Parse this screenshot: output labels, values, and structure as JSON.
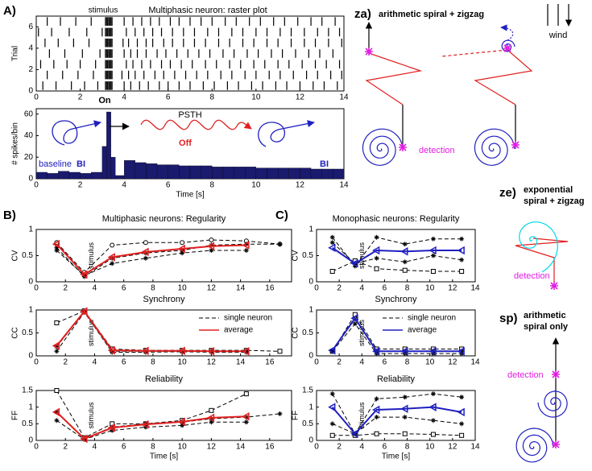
{
  "panel_labels": {
    "a": "A)",
    "b": "B)",
    "c": "C)"
  },
  "diagrams": {
    "za": {
      "label": "za)",
      "title": "arithmetic spiral + zigzag",
      "wind": "wind",
      "detection": "detection"
    },
    "ze": {
      "label": "ze)",
      "title_lines": [
        "exponential",
        "spiral + zigzag"
      ],
      "detection": "detection"
    },
    "sp": {
      "label": "sp)",
      "title_lines": [
        "arithmetic",
        "spiral only"
      ],
      "detection": "detection"
    }
  },
  "chart_data": [
    {
      "type": "raster",
      "title": "Multiphasic neuron: raster plot",
      "annotation": "stimulus",
      "ylabel": "Trial",
      "xlim": [
        0,
        14
      ],
      "xticks": [
        0,
        2,
        4,
        6,
        8,
        10,
        12,
        14
      ],
      "ylim": [
        0,
        7
      ],
      "yticks": [
        0,
        2,
        4,
        6
      ],
      "color": "#000000",
      "trials": [
        [
          0.3,
          0.9,
          1.6,
          2.2,
          2.8,
          3.15,
          3.2,
          3.25,
          3.3,
          3.35,
          3.4,
          3.45,
          4.0,
          4.3,
          4.7,
          5.1,
          5.6,
          6.0,
          6.5,
          7.0,
          7.6,
          8.1,
          8.7,
          9.2,
          9.8,
          10.3,
          10.9,
          11.4,
          12.0,
          12.6,
          13.1,
          13.7
        ],
        [
          0.5,
          1.2,
          1.9,
          2.6,
          3.15,
          3.2,
          3.25,
          3.3,
          3.35,
          3.4,
          3.45,
          3.9,
          4.2,
          4.5,
          4.9,
          5.4,
          5.8,
          6.3,
          6.8,
          7.3,
          7.8,
          8.4,
          8.9,
          9.5,
          10.0,
          10.6,
          11.1,
          11.7,
          12.3,
          12.8,
          13.4,
          13.9
        ],
        [
          0.2,
          0.8,
          1.4,
          2.0,
          2.7,
          3.15,
          3.2,
          3.25,
          3.3,
          3.35,
          3.4,
          3.45,
          4.1,
          4.4,
          4.8,
          5.2,
          5.7,
          6.1,
          6.6,
          7.1,
          7.7,
          8.2,
          8.8,
          9.3,
          9.9,
          10.4,
          11.0,
          11.5,
          12.1,
          12.7,
          13.2,
          13.8
        ],
        [
          0.6,
          1.3,
          2.1,
          2.9,
          3.15,
          3.2,
          3.25,
          3.3,
          3.35,
          3.4,
          3.45,
          4.0,
          4.3,
          4.6,
          5.0,
          5.5,
          5.9,
          6.4,
          6.9,
          7.4,
          7.9,
          8.5,
          9.0,
          9.6,
          10.1,
          10.7,
          11.2,
          11.8,
          12.4,
          12.9,
          13.5
        ],
        [
          0.4,
          1.0,
          1.7,
          2.4,
          3.15,
          3.2,
          3.25,
          3.3,
          3.35,
          3.4,
          3.45,
          3.95,
          4.2,
          4.6,
          5.0,
          5.3,
          5.8,
          6.2,
          6.7,
          7.2,
          7.7,
          8.3,
          8.8,
          9.4,
          9.9,
          10.5,
          11.0,
          11.6,
          12.2,
          12.7,
          13.3,
          13.9
        ],
        [
          0.1,
          0.7,
          1.5,
          2.3,
          3.0,
          3.15,
          3.2,
          3.25,
          3.3,
          3.35,
          3.4,
          3.45,
          4.1,
          4.5,
          4.9,
          5.3,
          5.7,
          6.2,
          6.7,
          7.2,
          7.8,
          8.3,
          8.9,
          9.4,
          10.0,
          10.5,
          11.1,
          11.6,
          12.2,
          12.8,
          13.3,
          13.8
        ],
        [
          0.5,
          1.1,
          1.8,
          2.5,
          3.15,
          3.2,
          3.25,
          3.3,
          3.35,
          3.4,
          3.45,
          4.0,
          4.4,
          4.8,
          5.2,
          5.6,
          6.1,
          6.5,
          7.0,
          7.5,
          8.0,
          8.6,
          9.1,
          9.7,
          10.2,
          10.8,
          11.3,
          11.9,
          12.5,
          13.0,
          13.6
        ]
      ]
    },
    {
      "type": "histogram",
      "title": "PSTH",
      "xlabel": "Time [s]",
      "ylabel": "# spikes/bin",
      "xlim": [
        0,
        14
      ],
      "xticks": [
        0,
        2,
        4,
        6,
        8,
        10,
        12,
        14
      ],
      "ylim": [
        0,
        65
      ],
      "yticks": [
        0,
        20,
        40,
        60
      ],
      "color": "#1a1a6e",
      "annotations": [
        "On",
        "Off",
        "baseline",
        "BI",
        "BI"
      ],
      "bins": [
        0,
        0.5,
        1,
        1.5,
        2,
        2.5,
        3,
        3.2,
        3.4,
        3.6,
        4,
        4.5,
        5,
        5.5,
        6,
        6.5,
        7,
        7.5,
        8,
        8.5,
        9,
        9.5,
        10,
        10.5,
        11,
        11.5,
        12,
        12.5,
        13,
        13.5,
        14
      ],
      "values": [
        6,
        5,
        7,
        6,
        5,
        6,
        30,
        62,
        20,
        3,
        17,
        15,
        14,
        13,
        13,
        12,
        12,
        12,
        11,
        11,
        11,
        11,
        10,
        10,
        10,
        10,
        10,
        9,
        9,
        9
      ]
    },
    {
      "type": "line",
      "title": "Multiphasic neurons: Regularity",
      "ylabel": "CV",
      "annotation": "stimulus",
      "xlim": [
        0,
        17.5
      ],
      "xticks": [
        0,
        2,
        4,
        6,
        8,
        10,
        12,
        14,
        16
      ],
      "ylim": [
        0,
        1
      ],
      "yticks": [
        0,
        0.5,
        1
      ],
      "x": [
        1.4,
        3.3,
        5.2,
        7.5,
        10,
        12,
        14.4,
        16.7
      ],
      "series": [
        {
          "color": "#000000",
          "dash": true,
          "marker": "circle",
          "values": [
            0.75,
            0.18,
            0.7,
            0.75,
            0.75,
            0.8,
            0.78,
            0.72
          ]
        },
        {
          "color": "#000000",
          "dash": true,
          "marker": "star",
          "values": [
            0.65,
            0.1,
            0.45,
            0.55,
            0.6,
            0.7,
            0.72,
            0.72
          ]
        },
        {
          "color": "#000000",
          "dash": true,
          "marker": "star",
          "values": [
            0.6,
            0.12,
            0.35,
            0.45,
            0.55,
            0.6,
            0.6,
            null
          ]
        },
        {
          "color": "#e02020",
          "dash": false,
          "marker": "triangle",
          "values": [
            0.72,
            0.14,
            0.47,
            0.57,
            0.63,
            0.68,
            0.7,
            null
          ]
        }
      ]
    },
    {
      "type": "line",
      "title": "Synchrony",
      "ylabel": "CC",
      "annotation": "stimulus",
      "xlim": [
        0,
        17.5
      ],
      "xticks": [
        0,
        2,
        4,
        6,
        8,
        10,
        12,
        14,
        16
      ],
      "ylim": [
        0,
        1
      ],
      "yticks": [
        0,
        0.5,
        1
      ],
      "x": [
        1.4,
        3.3,
        5.2,
        7.5,
        10,
        12,
        14.4,
        16.7
      ],
      "series": [
        {
          "name": "single neuron",
          "color": "#000000",
          "dash": true,
          "marker": "square",
          "values": [
            0.72,
            0.98,
            0.15,
            0.12,
            0.12,
            0.12,
            0.12,
            0.1
          ]
        },
        {
          "name": "single neuron",
          "color": "#000000",
          "dash": true,
          "marker": "star",
          "values": [
            0.2,
            0.96,
            0.1,
            0.1,
            0.1,
            0.1,
            0.1,
            null
          ]
        },
        {
          "name": "single neuron",
          "color": "#000000",
          "dash": true,
          "marker": "star",
          "values": [
            0.1,
            0.95,
            0.08,
            0.08,
            0.09,
            0.08,
            0.08,
            null
          ]
        },
        {
          "name": "average",
          "color": "#e02020",
          "dash": false,
          "marker": "triangle",
          "values": [
            0.22,
            0.97,
            0.12,
            0.11,
            0.11,
            0.1,
            0.1,
            null
          ]
        }
      ]
    },
    {
      "type": "line",
      "title": "Reliability",
      "xlabel": "Time [s]",
      "ylabel": "FF",
      "annotation": "stimulus",
      "xlim": [
        0,
        17.5
      ],
      "xticks": [
        0,
        2,
        4,
        6,
        8,
        10,
        12,
        14,
        16
      ],
      "ylim": [
        0,
        1.5
      ],
      "yticks": [
        0,
        0.5,
        1,
        1.5
      ],
      "x": [
        1.4,
        3.3,
        5.2,
        7.5,
        10,
        12,
        14.4,
        16.7
      ],
      "series": [
        {
          "color": "#000000",
          "dash": true,
          "marker": "square",
          "values": [
            1.5,
            0.08,
            0.5,
            0.5,
            0.6,
            0.9,
            1.4,
            null
          ]
        },
        {
          "color": "#000000",
          "dash": true,
          "marker": "star",
          "values": [
            0.85,
            0.05,
            0.4,
            0.5,
            0.55,
            0.65,
            0.7,
            0.8
          ]
        },
        {
          "color": "#000000",
          "dash": true,
          "marker": "star",
          "values": [
            0.6,
            0.03,
            0.3,
            0.4,
            0.45,
            0.55,
            0.55,
            null
          ]
        },
        {
          "color": "#e02020",
          "dash": false,
          "marker": "triangle",
          "values": [
            0.85,
            0.05,
            0.38,
            0.48,
            0.56,
            0.68,
            0.72,
            null
          ]
        }
      ]
    },
    {
      "type": "line",
      "title": "Monophasic neurons: Regularity",
      "ylabel": "CV",
      "annotation": "stimulus",
      "xlim": [
        0,
        14
      ],
      "xticks": [
        0,
        2,
        4,
        6,
        8,
        10,
        12,
        14
      ],
      "ylim": [
        0,
        1
      ],
      "yticks": [
        0,
        0.5,
        1
      ],
      "x": [
        1.4,
        3.4,
        5.3,
        7.8,
        10.3,
        12.8
      ],
      "series": [
        {
          "color": "#000000",
          "dash": true,
          "marker": "square",
          "values": [
            0.2,
            0.4,
            0.25,
            0.22,
            0.2,
            0.2
          ]
        },
        {
          "color": "#000000",
          "dash": true,
          "marker": "star",
          "values": [
            0.85,
            0.3,
            0.85,
            0.72,
            0.82,
            0.82
          ]
        },
        {
          "color": "#000000",
          "dash": true,
          "marker": "star",
          "values": [
            0.75,
            0.35,
            0.45,
            0.38,
            0.5,
            0.42
          ]
        },
        {
          "color": "#2020c0",
          "dash": false,
          "marker": "triangle",
          "values": [
            0.65,
            0.35,
            0.6,
            0.58,
            0.6,
            0.6
          ]
        }
      ]
    },
    {
      "type": "line",
      "title": "Synchrony",
      "ylabel": "CC",
      "annotation": "stimulus",
      "xlim": [
        0,
        14
      ],
      "xticks": [
        0,
        2,
        4,
        6,
        8,
        10,
        12,
        14
      ],
      "ylim": [
        0,
        1
      ],
      "yticks": [
        0,
        0.5,
        1
      ],
      "x": [
        1.4,
        3.4,
        5.3,
        7.8,
        10.3,
        12.8
      ],
      "series": [
        {
          "name": "single neuron",
          "color": "#000000",
          "dash": true,
          "marker": "square",
          "values": [
            0.1,
            0.9,
            0.15,
            0.15,
            0.15,
            0.15
          ]
        },
        {
          "name": "single neuron",
          "color": "#000000",
          "dash": true,
          "marker": "star",
          "values": [
            0.12,
            0.8,
            0.1,
            0.1,
            0.1,
            0.1
          ]
        },
        {
          "name": "single neuron",
          "color": "#000000",
          "dash": true,
          "marker": "star",
          "values": [
            0.1,
            0.7,
            0.05,
            0.05,
            0.05,
            0.05
          ]
        },
        {
          "name": "average",
          "color": "#2020c0",
          "dash": false,
          "marker": "triangle",
          "values": [
            0.12,
            0.82,
            0.1,
            0.1,
            0.1,
            0.1
          ]
        }
      ]
    },
    {
      "type": "line",
      "title": "Reliability",
      "xlabel": "Time [s]",
      "ylabel": "FF",
      "annotation": "stimulus",
      "xlim": [
        0,
        14
      ],
      "xticks": [
        0,
        2,
        4,
        6,
        8,
        10,
        12,
        14
      ],
      "ylim": [
        0,
        1.5
      ],
      "yticks": [
        0,
        0.5,
        1,
        1.5
      ],
      "x": [
        1.4,
        3.4,
        5.3,
        7.8,
        10.3,
        12.8
      ],
      "series": [
        {
          "color": "#000000",
          "dash": true,
          "marker": "square",
          "values": [
            0.15,
            0.15,
            0.2,
            0.2,
            0.18,
            0.15
          ]
        },
        {
          "color": "#000000",
          "dash": true,
          "marker": "star",
          "values": [
            1.4,
            0.2,
            1.25,
            1.3,
            1.4,
            1.3
          ]
        },
        {
          "color": "#000000",
          "dash": true,
          "marker": "star",
          "values": [
            0.5,
            0.2,
            0.7,
            0.7,
            0.6,
            0.5
          ]
        },
        {
          "color": "#2020c0",
          "dash": false,
          "marker": "triangle",
          "values": [
            1.0,
            0.2,
            0.92,
            0.95,
            1.0,
            0.85
          ]
        }
      ]
    }
  ]
}
